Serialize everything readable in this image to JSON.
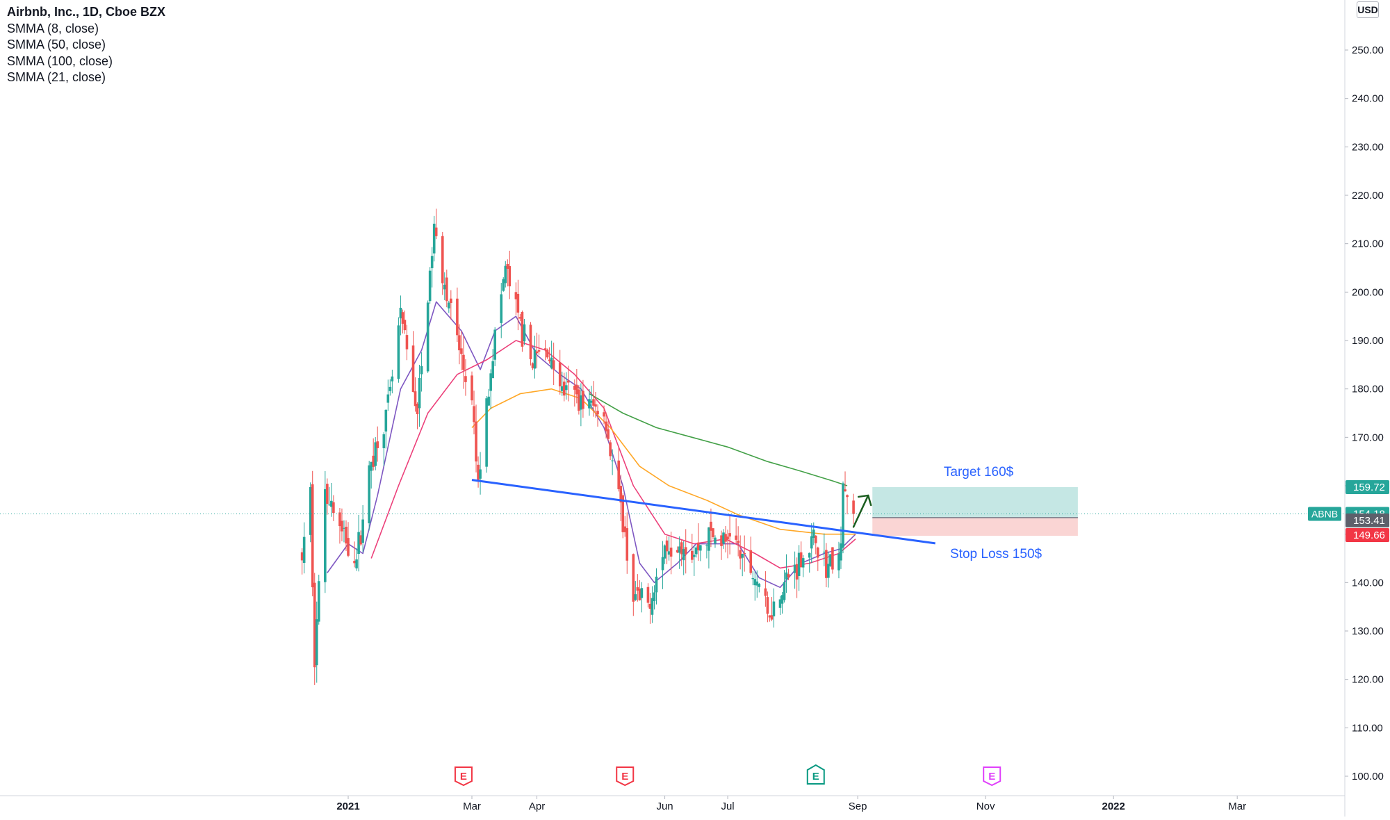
{
  "legend": {
    "title": "Airbnb, Inc., 1D, Cboe BZX",
    "indicators": [
      "SMMA (8, close)",
      "SMMA (50, close)",
      "SMMA (100, close)",
      "SMMA (21, close)"
    ]
  },
  "currency": "USD",
  "colors": {
    "up": "#26a69a",
    "down": "#ef5350",
    "smma8": "#7e57c2",
    "smma21": "#ec407a",
    "smma50": "#ffa726",
    "smma100": "#43a047",
    "trendline": "#2962ff",
    "target_zone": "#b2dfdb",
    "stop_zone": "#f8c7c6",
    "last_price": "#26a69a",
    "stop_badge": "#f23645",
    "entry_badge": "#5d606b",
    "earnings_past": "#f23645",
    "earnings_confirmed": "#089981",
    "earnings_future": "#e040fb",
    "arrow": "#1b5e20"
  },
  "chart_data": {
    "type": "candlestick",
    "title": "Airbnb, Inc., 1D, Cboe BZX",
    "symbol": "ABNB",
    "ylim": [
      96,
      266
    ],
    "y_ticks": [
      100,
      110,
      120,
      130,
      140,
      150,
      160,
      170,
      180,
      190,
      200,
      210,
      220,
      230,
      240,
      250
    ],
    "y_tick_labels": [
      "100.00",
      "110.00",
      "120.00",
      "130.00",
      "140.00",
      "150.00",
      "160.00",
      "170.00",
      "180.00",
      "190.00",
      "200.00",
      "210.00",
      "220.00",
      "230.00",
      "240.00",
      "250.00"
    ],
    "x_range": [
      "2020-12-01",
      "2022-03-15"
    ],
    "x_ticks": [
      {
        "date": "2021-01-01",
        "label": "2021"
      },
      {
        "date": "2021-03-01",
        "label": "Mar"
      },
      {
        "date": "2021-04-01",
        "label": "Apr"
      },
      {
        "date": "2021-06-01",
        "label": "Jun"
      },
      {
        "date": "2021-07-01",
        "label": "Jul"
      },
      {
        "date": "2021-09-01",
        "label": "Sep"
      },
      {
        "date": "2021-11-01",
        "label": "Nov"
      },
      {
        "date": "2022-01-01",
        "label": "2022"
      },
      {
        "date": "2022-03-01",
        "label": "Mar"
      }
    ],
    "price_path": [
      [
        "2020-12-10",
        145
      ],
      [
        "2020-12-14",
        158
      ],
      [
        "2020-12-16",
        125
      ],
      [
        "2020-12-21",
        160
      ],
      [
        "2020-12-29",
        150
      ],
      [
        "2021-01-05",
        145
      ],
      [
        "2021-01-12",
        165
      ],
      [
        "2021-01-20",
        176
      ],
      [
        "2021-01-26",
        195
      ],
      [
        "2021-02-03",
        175
      ],
      [
        "2021-02-11",
        213
      ],
      [
        "2021-02-17",
        200
      ],
      [
        "2021-02-24",
        186
      ],
      [
        "2021-03-01",
        176
      ],
      [
        "2021-03-04",
        160
      ],
      [
        "2021-03-10",
        185
      ],
      [
        "2021-03-17",
        205
      ],
      [
        "2021-03-22",
        196
      ],
      [
        "2021-03-29",
        186
      ],
      [
        "2021-04-06",
        188
      ],
      [
        "2021-04-13",
        180
      ],
      [
        "2021-04-22",
        178
      ],
      [
        "2021-05-03",
        175
      ],
      [
        "2021-05-12",
        152
      ],
      [
        "2021-05-17",
        137
      ],
      [
        "2021-05-24",
        135
      ],
      [
        "2021-06-01",
        147
      ],
      [
        "2021-06-08",
        149
      ],
      [
        "2021-06-15",
        146
      ],
      [
        "2021-06-22",
        150
      ],
      [
        "2021-06-30",
        148
      ],
      [
        "2021-07-02",
        151
      ],
      [
        "2021-07-09",
        144
      ],
      [
        "2021-07-16",
        140
      ],
      [
        "2021-07-20",
        133
      ],
      [
        "2021-07-28",
        140
      ],
      [
        "2021-08-05",
        145
      ],
      [
        "2021-08-12",
        149
      ],
      [
        "2021-08-17",
        143
      ],
      [
        "2021-08-24",
        146
      ],
      [
        "2021-08-25",
        160
      ],
      [
        "2021-08-27",
        157
      ],
      [
        "2021-08-30",
        154.18
      ]
    ],
    "moving_averages": [
      {
        "name": "SMMA (8, close)",
        "color_key": "smma8",
        "start": "2020-12-22",
        "points": [
          [
            "2020-12-22",
            142
          ],
          [
            "2021-01-01",
            148
          ],
          [
            "2021-01-08",
            146
          ],
          [
            "2021-01-15",
            158
          ],
          [
            "2021-01-26",
            180
          ],
          [
            "2021-02-05",
            188
          ],
          [
            "2021-02-12",
            198
          ],
          [
            "2021-02-24",
            192
          ],
          [
            "2021-03-05",
            184
          ],
          [
            "2021-03-12",
            192
          ],
          [
            "2021-03-22",
            195
          ],
          [
            "2021-04-01",
            187
          ],
          [
            "2021-04-12",
            183
          ],
          [
            "2021-04-22",
            180
          ],
          [
            "2021-05-03",
            172
          ],
          [
            "2021-05-12",
            160
          ],
          [
            "2021-05-20",
            144
          ],
          [
            "2021-05-27",
            140
          ],
          [
            "2021-06-07",
            144
          ],
          [
            "2021-06-16",
            148
          ],
          [
            "2021-06-28",
            148
          ],
          [
            "2021-07-06",
            148
          ],
          [
            "2021-07-16",
            141
          ],
          [
            "2021-07-26",
            139
          ],
          [
            "2021-08-05",
            144
          ],
          [
            "2021-08-16",
            146
          ],
          [
            "2021-08-24",
            147
          ],
          [
            "2021-08-31",
            150
          ]
        ]
      },
      {
        "name": "SMMA (21, close)",
        "color_key": "smma21",
        "start": "2021-01-12",
        "points": [
          [
            "2021-01-12",
            145
          ],
          [
            "2021-01-25",
            160
          ],
          [
            "2021-02-08",
            175
          ],
          [
            "2021-02-22",
            183
          ],
          [
            "2021-03-08",
            186
          ],
          [
            "2021-03-22",
            190
          ],
          [
            "2021-04-05",
            188
          ],
          [
            "2021-04-19",
            183
          ],
          [
            "2021-05-03",
            176
          ],
          [
            "2021-05-17",
            160
          ],
          [
            "2021-06-01",
            150
          ],
          [
            "2021-06-15",
            148
          ],
          [
            "2021-06-30",
            149
          ],
          [
            "2021-07-14",
            146
          ],
          [
            "2021-07-26",
            143
          ],
          [
            "2021-08-09",
            144
          ],
          [
            "2021-08-23",
            146
          ],
          [
            "2021-08-31",
            149
          ]
        ]
      },
      {
        "name": "SMMA (50, close)",
        "color_key": "smma50",
        "start": "2021-03-01",
        "points": [
          [
            "2021-03-01",
            172
          ],
          [
            "2021-03-10",
            176
          ],
          [
            "2021-03-24",
            179
          ],
          [
            "2021-04-08",
            180
          ],
          [
            "2021-04-22",
            178
          ],
          [
            "2021-05-06",
            172
          ],
          [
            "2021-05-20",
            164
          ],
          [
            "2021-06-03",
            160
          ],
          [
            "2021-06-21",
            157
          ],
          [
            "2021-07-06",
            154
          ],
          [
            "2021-07-26",
            151
          ],
          [
            "2021-08-16",
            150
          ],
          [
            "2021-08-31",
            150
          ]
        ]
      },
      {
        "name": "SMMA (100, close)",
        "color_key": "smma100",
        "start": "2021-04-26",
        "points": [
          [
            "2021-04-26",
            179
          ],
          [
            "2021-05-12",
            175
          ],
          [
            "2021-05-28",
            172
          ],
          [
            "2021-06-14",
            170
          ],
          [
            "2021-07-01",
            168
          ],
          [
            "2021-07-20",
            165
          ],
          [
            "2021-08-05",
            163
          ],
          [
            "2021-08-20",
            161
          ],
          [
            "2021-08-27",
            160
          ]
        ]
      }
    ],
    "trendline": {
      "from": [
        "2021-03-01",
        161.2
      ],
      "to": [
        "2021-10-08",
        148.1
      ]
    },
    "position": {
      "start": "2021-09-08",
      "end": "2021-12-15",
      "entry": 153.41,
      "target": 159.72,
      "stop": 149.66,
      "target_label": "Target 160$",
      "stop_label": "Stop Loss 150$"
    },
    "annotation_arrow": {
      "from": [
        "2021-08-30",
        151.5
      ],
      "to": [
        "2021-09-06",
        158
      ]
    },
    "last_price_line": 154.18,
    "price_badges": [
      {
        "label": "159.72",
        "value": 159.72,
        "color_key": "last_price"
      },
      {
        "label": "154.18",
        "value": 154.18,
        "color_key": "last_price",
        "symbol": "ABNB"
      },
      {
        "label": "153.41",
        "value": 153.41,
        "color_key": "entry_badge"
      },
      {
        "label": "149.66",
        "value": 149.66,
        "color_key": "stop_badge"
      }
    ],
    "earnings": [
      {
        "date": "2021-02-25",
        "label": "E",
        "color_key": "earnings_past"
      },
      {
        "date": "2021-05-13",
        "label": "E",
        "color_key": "earnings_past"
      },
      {
        "date": "2021-08-12",
        "label": "E",
        "color_key": "earnings_confirmed"
      },
      {
        "date": "2021-11-04",
        "label": "E",
        "color_key": "earnings_future"
      }
    ]
  }
}
